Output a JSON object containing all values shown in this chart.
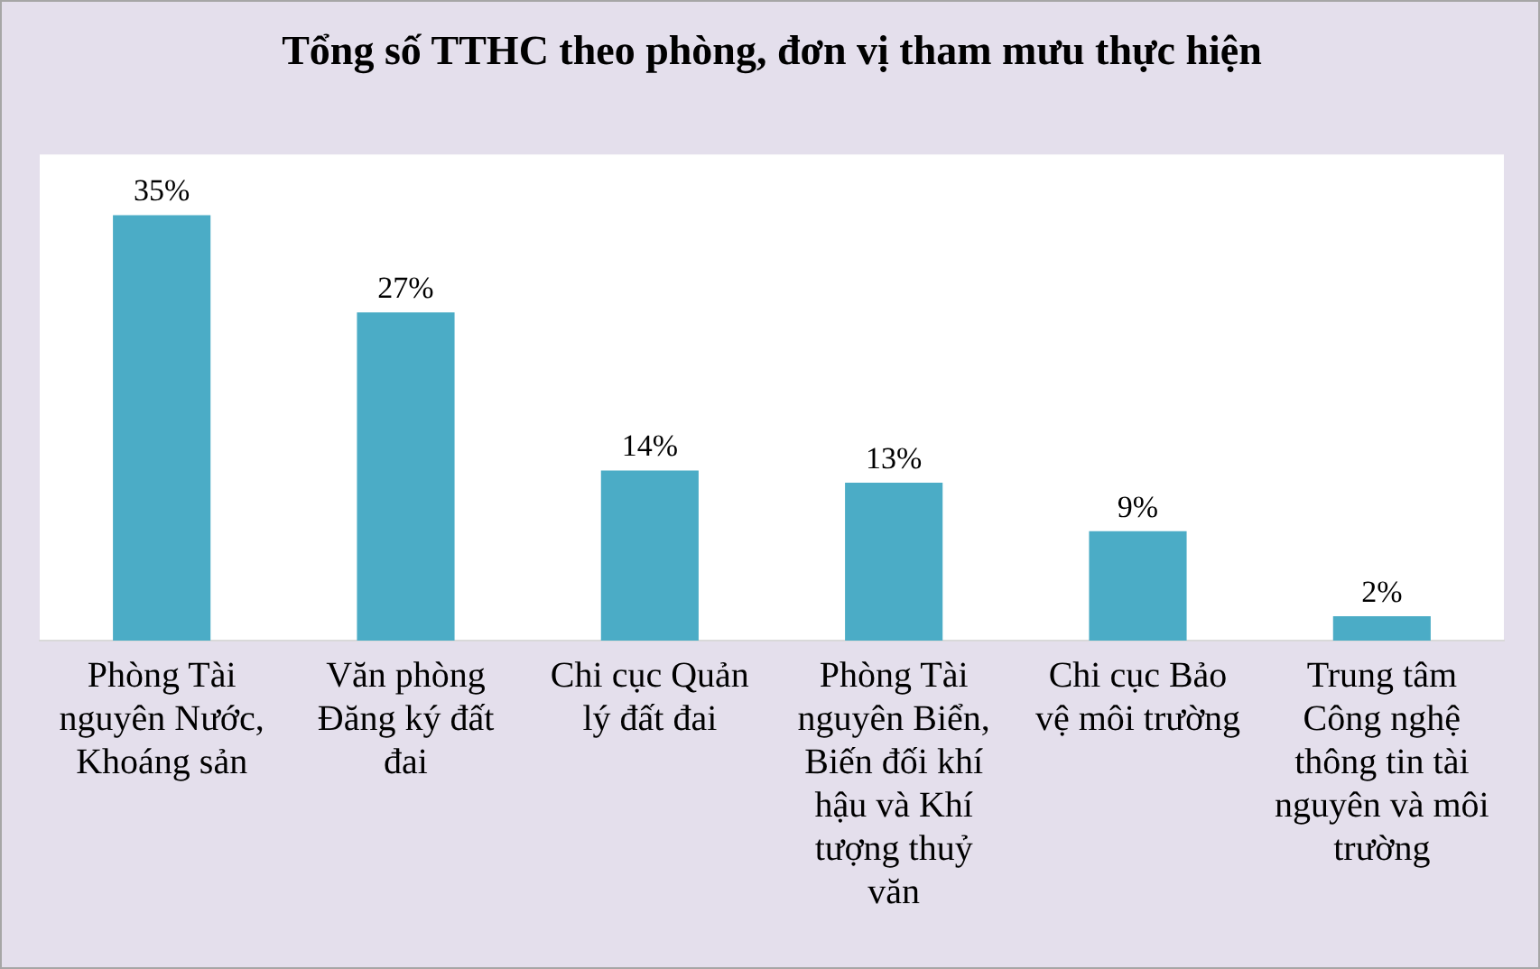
{
  "chart_data": {
    "type": "bar",
    "title": "Tổng số TTHC theo phòng, đơn vị tham mưu thực hiện",
    "categories": [
      "Phòng Tài nguyên Nước, Khoáng sản",
      "Văn phòng Đăng ký đất đai",
      "Chi cục Quản lý đất đai",
      "Phòng Tài nguyên Biển, Biến đối khí hậu và Khí tượng thuỷ văn",
      "Chi cục Bảo vệ môi trường",
      "Trung tâm Công nghệ thông tin tài nguyên và môi trường"
    ],
    "values": [
      35,
      27,
      14,
      13,
      9,
      2
    ],
    "value_labels": [
      "35%",
      "27%",
      "14%",
      "13%",
      "9%",
      "2%"
    ],
    "color": "#4bacc6",
    "grid": false,
    "legend": false
  }
}
